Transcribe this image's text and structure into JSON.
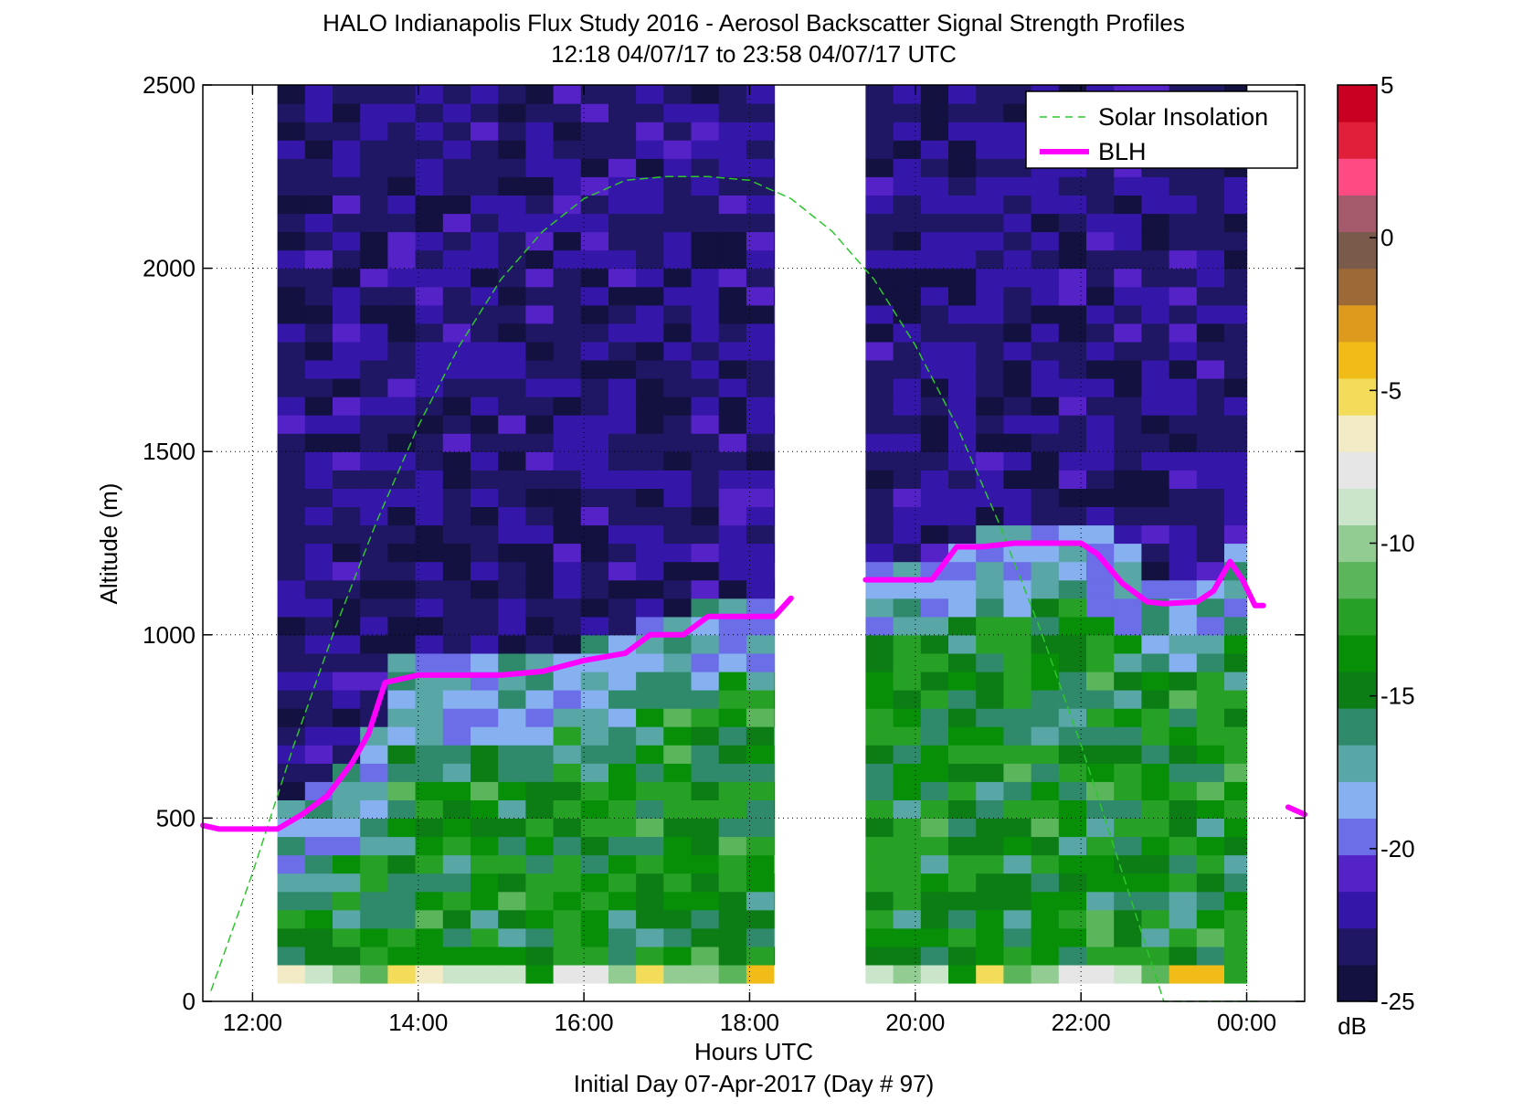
{
  "chart_data": {
    "type": "heatmap",
    "title": "HALO Indianapolis Flux Study 2016 - Aerosol Backscatter Signal Strength Profiles",
    "subtitle": "12:18 04/07/17 to 23:58 04/07/17  UTC",
    "xlabel": "Hours UTC",
    "xlabel2": "Initial Day 07-Apr-2017 (Day # 97)",
    "ylabel": "Altitude (m)",
    "xlim": [
      11.4,
      24.7
    ],
    "ylim": [
      0,
      2500
    ],
    "x_ticks": [
      12,
      14,
      16,
      18,
      20,
      22,
      24
    ],
    "x_tick_labels": [
      "12:00",
      "14:00",
      "16:00",
      "18:00",
      "20:00",
      "22:00",
      "00:00"
    ],
    "y_ticks": [
      0,
      500,
      1000,
      1500,
      2000,
      2500
    ],
    "y_tick_labels": [
      "0",
      "500",
      "1000",
      "1500",
      "2000",
      "2500"
    ],
    "grid": true,
    "colorbar": {
      "unit": "dB",
      "range": [
        -25,
        5
      ],
      "ticks": [
        5,
        0,
        -5,
        -10,
        -15,
        -20,
        -25
      ],
      "tick_labels": [
        "5",
        "0",
        "-5",
        "-10",
        "-15",
        "-20",
        "-25"
      ]
    },
    "heatmap": {
      "cell_hours": 0.333,
      "cell_m": 50,
      "y_start_m": 50,
      "segments": [
        {
          "start_hour": 12.3,
          "end_hour": 18.3
        },
        {
          "start_hour": 19.4,
          "end_hour": 24.0
        }
      ]
    },
    "legend": {
      "position": "top-right"
    },
    "series": [
      {
        "name": "Solar Insolation",
        "style": "dashed",
        "color": "#2ec62e",
        "x": [
          11.5,
          12.0,
          12.5,
          13.0,
          13.5,
          14.0,
          14.5,
          15.0,
          15.5,
          16.0,
          16.5,
          17.0,
          17.5,
          18.0,
          18.5,
          19.0,
          19.5,
          20.0,
          20.5,
          21.0,
          21.5,
          22.0,
          22.5,
          23.0,
          23.5,
          24.0,
          24.2
        ],
        "y": [
          30,
          350,
          700,
          1020,
          1310,
          1570,
          1790,
          1970,
          2100,
          2190,
          2240,
          2250,
          2250,
          2240,
          2190,
          2100,
          1970,
          1790,
          1570,
          1310,
          1020,
          700,
          350,
          0,
          0,
          0,
          0
        ]
      },
      {
        "name": "BLH",
        "style": "solid",
        "color": "#ff00ff",
        "x": [
          11.4,
          11.6,
          12.0,
          12.3,
          12.6,
          12.9,
          13.2,
          13.4,
          13.6,
          14.0,
          14.5,
          15.0,
          15.5,
          16.0,
          16.5,
          16.8,
          17.2,
          17.5,
          18.0,
          18.3,
          18.5
        ],
        "y": [
          480,
          470,
          470,
          470,
          510,
          560,
          650,
          730,
          870,
          890,
          890,
          890,
          900,
          930,
          950,
          1000,
          1000,
          1050,
          1050,
          1050,
          1100
        ]
      },
      {
        "name": "BLH",
        "style": "solid",
        "color": "#ff00ff",
        "x": [
          19.4,
          19.8,
          20.2,
          20.5,
          20.8,
          21.2,
          21.6,
          22.0,
          22.2,
          22.5,
          22.8,
          23.0,
          23.4,
          23.6,
          23.8,
          23.95,
          24.1,
          24.2
        ],
        "y": [
          1150,
          1150,
          1150,
          1240,
          1240,
          1250,
          1250,
          1250,
          1220,
          1140,
          1090,
          1085,
          1090,
          1120,
          1200,
          1150,
          1080,
          1080
        ]
      },
      {
        "name": "BLH",
        "style": "solid",
        "color": "#ff00ff",
        "x": [
          24.5,
          24.7
        ],
        "y": [
          530,
          510
        ]
      }
    ],
    "legend_entries": [
      {
        "name": "Solar Insolation",
        "style": "dashed",
        "color": "#2ec62e"
      },
      {
        "name": "BLH",
        "style": "solid",
        "color": "#ff00ff"
      }
    ],
    "colors": {
      "colormap": [
        "#13113f",
        "#1f1664",
        "#3417a8",
        "#5522c8",
        "#6b6ee6",
        "#86b0f0",
        "#58a6a6",
        "#2e8a6b",
        "#0b7d14",
        "#079007",
        "#26a126",
        "#5bb55b",
        "#93cc93",
        "#cbe5cb",
        "#e6e6e6",
        "#f2ebc5",
        "#f3dc5a",
        "#f2bc18",
        "#dd9a1c",
        "#9d6a37",
        "#7a5a4a",
        "#a45a6a",
        "#ff4b84",
        "#e0203a",
        "#c90022"
      ]
    }
  }
}
